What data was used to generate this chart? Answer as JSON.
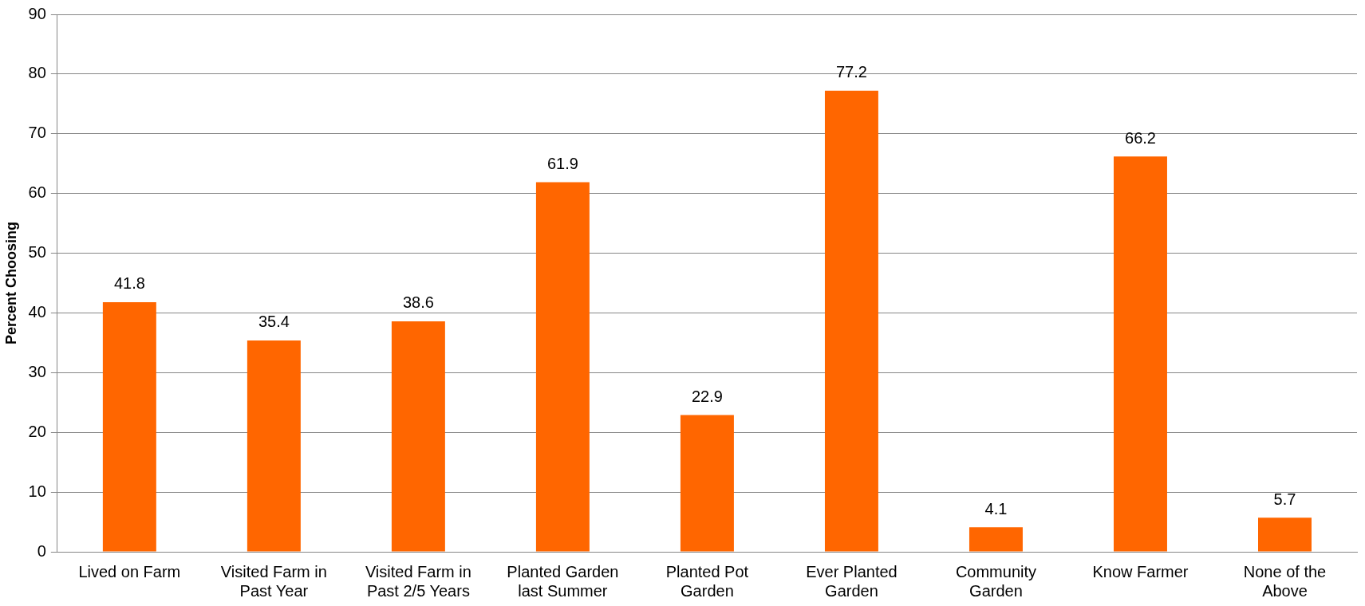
{
  "chart_data": {
    "type": "bar",
    "ylabel": "Percent Choosing",
    "categories": [
      "Lived on Farm",
      "Visited Farm in Past Year",
      "Visited Farm in Past 2/5 Years",
      "Planted Garden last Summer",
      "Planted Pot Garden",
      "Ever Planted Garden",
      "Community Garden",
      "Know Farmer",
      "None of the Above"
    ],
    "values": [
      41.8,
      35.4,
      38.6,
      61.9,
      22.9,
      77.2,
      4.1,
      66.2,
      5.7
    ],
    "color": "#ff6600",
    "ylim": [
      0,
      90
    ],
    "yticks": [
      0,
      10,
      20,
      30,
      40,
      50,
      60,
      70,
      80,
      90
    ],
    "grid": "y",
    "data_labels": true,
    "legend": false
  }
}
